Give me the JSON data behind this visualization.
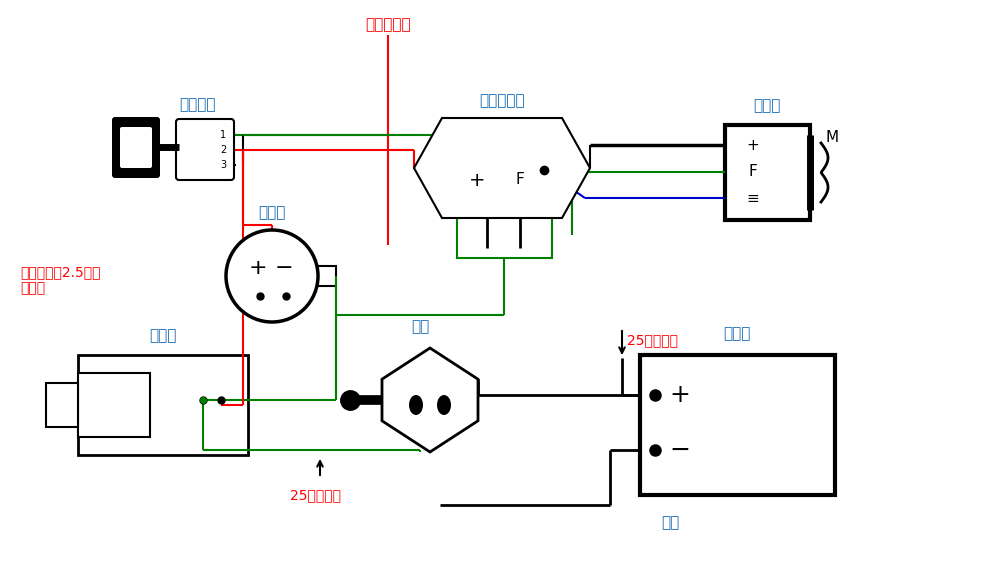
{
  "bg_color": "#ffffff",
  "label_color": "#1a6bb5",
  "line_black": "#000000",
  "line_red": "#ff0000",
  "line_green": "#008000",
  "line_blue": "#0000cc",
  "figsize": [
    9.97,
    5.78
  ],
  "dpi": 100,
  "texts": {
    "jie_che_deng": "接车灯开关",
    "dian_huo": "点火开关",
    "dian_zi_tiao": "电子调节器",
    "fa_dian_ji": "发电机",
    "dian_liu_biao": "电流表",
    "qi_dong_ji": "启动机",
    "dian_men": "电闸",
    "xu_dian_chi": "蓄电池",
    "jie_di": "接地",
    "copper_wire_bottom": "25平方铜线",
    "copper_wire_top": "25平方铜线",
    "other_wire": "其它接线用2.5平方\n国标线"
  }
}
